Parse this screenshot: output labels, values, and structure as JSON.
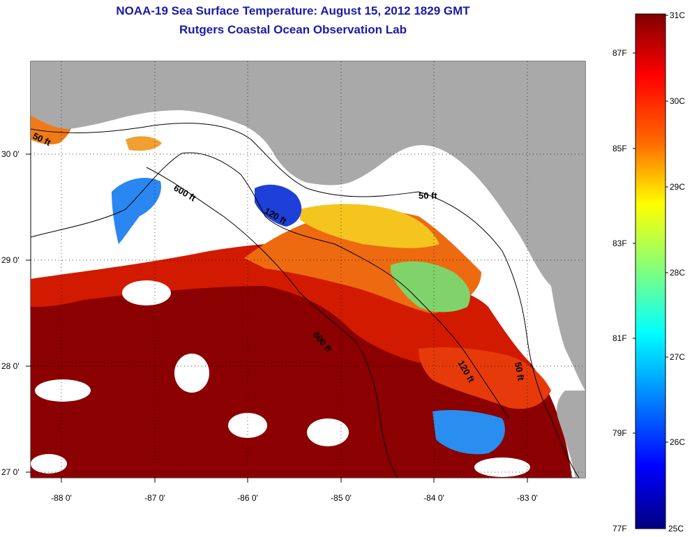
{
  "title": "NOAA-19 Sea Surface Temperature:  August 15, 2012 1829 GMT",
  "subtitle": "Rutgers Coastal Ocean Observation Lab",
  "map": {
    "lon_ticks": [
      "-88 0'",
      "-87 0'",
      "-86 0'",
      "-85 0'",
      "-84 0'",
      "-83 0'"
    ],
    "lat_ticks": [
      "30 0'",
      "29 0'",
      "28 0'",
      "27 0'"
    ],
    "lon_range": [
      -88.33,
      -82.6
    ],
    "lat_range": [
      26.97,
      30.87
    ],
    "contour_labels": [
      "50 ft",
      "600 ft",
      "120 ft",
      "50 ft",
      "600 ft",
      "120 ft",
      "50 ft"
    ],
    "colors": {
      "land": "#a9a9a9",
      "cloud_no_data": "#ffffff",
      "warmest": "#7f0000",
      "gridline": "#000000"
    }
  },
  "colorbar": {
    "celsius_labels": [
      "31C",
      "30C",
      "29C",
      "28C",
      "27C",
      "26C",
      "25C"
    ],
    "fahrenheit_labels": [
      "87F",
      "85F",
      "83F",
      "81F",
      "79F",
      "77F"
    ],
    "range_c": [
      25,
      31
    ],
    "colormap": "jet"
  }
}
